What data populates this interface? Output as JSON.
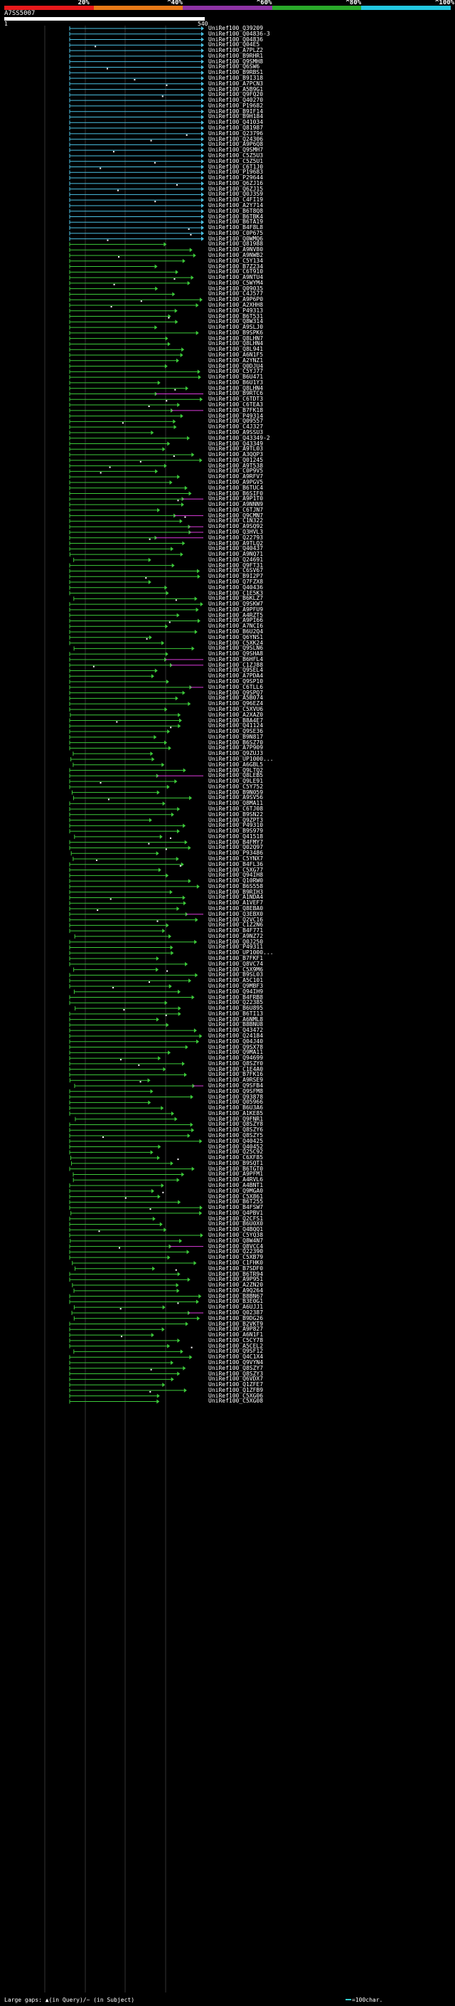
{
  "legend": {
    "segments": [
      {
        "name": "red",
        "color": "#e8191b"
      },
      {
        "name": "orange",
        "color": "#e87a17"
      },
      {
        "name": "purple",
        "color": "#8e33a4"
      },
      {
        "name": "green",
        "color": "#2aa92a"
      },
      {
        "name": "cyan",
        "color": "#22c7e0"
      }
    ],
    "labels": [
      "20%",
      "^40%",
      "^60%",
      "^80%",
      "^100%"
    ]
  },
  "query": {
    "title": "A7SS5007",
    "start": "1",
    "end": "540"
  },
  "colors": {
    "cyan": "#4cc3e6",
    "green": "#3cc93a",
    "magenta": "#d93bd9",
    "grid": "#333333"
  },
  "footer": {
    "large_gaps": "Large gaps: ▲(in Query)/~ (in Subject)",
    "scale_key": "=100char."
  },
  "hits": [
    "UniRef100_Q39209",
    "UniRef100_Q04836-3",
    "UniRef100_Q04836",
    "UniRef100_Q04E5",
    "UniRef100_A7PLZ2",
    "UniRef100_B9RHR1",
    "UniRef100_Q9SMH8",
    "UniRef100_Q6SW6",
    "UniRef100_B9RBS1",
    "UniRef100_B9I318",
    "UniRef100_A7PCN3",
    "UniRef100_A5B9G1",
    "UniRef100_Q9FQ20",
    "UniRef100_Q40270",
    "UniRef100_P19682",
    "UniRef100_B9IF14",
    "UniRef100_B9H184",
    "UniRef100_Q41034",
    "UniRef100_Q81987",
    "UniRef100_Q23796",
    "UniRef100_Q24306",
    "UniRef100_A9P6Q8",
    "UniRef100_Q9SMH7",
    "UniRef100_C5Z5U3",
    "UniRef100_C5Z5U1",
    "UniRef100_C6T1J0",
    "UniRef100_P19683",
    "UniRef100_P29644",
    "UniRef100_Q6ZJ16",
    "UniRef100_Q6ZJ15",
    "UniRef100_Q0J3S9",
    "UniRef100_C4FI19",
    "UniRef100_A2Y714",
    "UniRef100_B6T8Q8",
    "UniRef100_B6TBK4",
    "UniRef100_B6TA19",
    "UniRef100_B4F8L8",
    "UniRef100_C0P675",
    "UniRef100_Q0WMQ6",
    "UniRef100_Q81988",
    "UniRef100_A9NV80",
    "UniRef100_A9NWB2",
    "UniRef100_C5Y134",
    "UniRef100_B7Z234",
    "UniRef100_C6T910",
    "UniRef100_A9NTU4",
    "UniRef100_C5WYM4",
    "UniRef100_Q09035",
    "UniRef100_C4J577",
    "UniRef100_A9P6P0",
    "UniRef100_A2XHH8",
    "UniRef100_P49313",
    "UniRef100_B6T531",
    "UniRef100_Q8W314",
    "UniRef100_A9SLJ0",
    "UniRef100_B9SPK6",
    "UniRef100_Q8LHN7",
    "UniRef100_Q8LHN4",
    "UniRef100_Q8L941",
    "UniRef100_A6N1F5",
    "UniRef100_A2YNZ1",
    "UniRef100_Q0DJU4",
    "UniRef100_C5YJ77",
    "UniRef100_B6U471",
    "UniRef100_B6U1Y3",
    "UniRef100_Q8LHN4",
    "UniRef100_B9RTC6",
    "UniRef100_C6TDT3",
    "UniRef100_C6TEA3",
    "UniRef100_B7FK18",
    "UniRef100_P49314",
    "UniRef100_Q09557",
    "UniRef100_C4J327",
    "UniRef100_A9SSU3",
    "UniRef100_Q43349-2",
    "UniRef100_Q43349",
    "UniRef100_A9TL03",
    "UniRef100_A3QQP3",
    "UniRef100_Q01245",
    "UniRef100_A9T538",
    "UniRef100_C0P9V5",
    "UniRef100_A9RFV7",
    "UniRef100_A9PGV5",
    "UniRef100_B6TUC4",
    "UniRef100_B6SIF0",
    "UniRef100_A9P1T0",
    "UniRef100_A9NNN9",
    "UniRef100_C6TJN7",
    "UniRef100_Q9CMN7",
    "UniRef100_C1N322",
    "UniRef100_A9SQ92",
    "UniRef100_Q3HVL3",
    "UniRef100_Q22793",
    "UniRef100_A9TLQ2",
    "UniRef100_Q40437",
    "UniRef100_A9NQ71",
    "UniRef100_Q24691",
    "UniRef100_Q9FT31",
    "UniRef100_C6SV67",
    "UniRef100_B9I2P7",
    "UniRef100_Q7FZX8",
    "UniRef100_Q40436",
    "UniRef100_C1E5K3",
    "UniRef100_B6KLZ7",
    "UniRef100_Q9SKW7",
    "UniRef100_A9PFU9",
    "UniRef100_A4RZT5",
    "UniRef100_A9PI66",
    "UniRef100_A7NCI6",
    "UniRef100_B6U2Q4",
    "UniRef100_Q6YNS1",
    "UniRef100_C5XK24",
    "UniRef100_Q9SLN6",
    "UniRef100_Q9SHA8",
    "UniRef100_B6HFL4",
    "UniRef100_C1ZJ88",
    "UniRef100_Q9SEL4",
    "UniRef100_A7PDA4",
    "UniRef100_Q9SP10",
    "UniRef100_C6TLL6",
    "UniRef100_Q9SPQ7",
    "UniRef100_A5B074",
    "UniRef100_Q96EZ4",
    "UniRef100_C5XVU6",
    "UniRef100_A2XAZ0",
    "UniRef100_B8A4E7",
    "UniRef100_Q41124",
    "UniRef100_Q9SE36",
    "UniRef100_B9N817",
    "UniRef100_B6SZ70",
    "UniRef100_A7P909",
    "UniRef100_Q9ZUJ3",
    "UniRef100_UP1000...",
    "UniRef100_A6GBL5",
    "UniRef100_Q9LTQ2",
    "UniRef100_Q8LEB5",
    "UniRef100_Q9LE91",
    "UniRef100_C5Y752",
    "UniRef100_B9N059",
    "UniRef100_A9SV56",
    "UniRef100_Q8MA11",
    "UniRef100_C6TJ08",
    "UniRef100_B9SN22",
    "UniRef100_Q9ZPT3",
    "UniRef100_P49310",
    "UniRef100_B9S979",
    "UniRef100_Q41518",
    "UniRef100_B4FMY7",
    "UniRef100_Q02Q97",
    "UniRef100_P93486",
    "UniRef100_C5YNX7",
    "UniRef100_B4FL36",
    "UniRef100_C5XG77",
    "UniRef100_Q94IH8",
    "UniRef100_Q10RW0",
    "UniRef100_B6S558",
    "UniRef100_B9RIH3",
    "UniRef100_A1NDA4",
    "UniRef100_A1VEF7",
    "UniRef100_Q8EBA0",
    "UniRef100_Q3EBX0",
    "UniRef100_Q2VC16",
    "UniRef100_C1Z2N6",
    "UniRef100_B4F771",
    "UniRef100_A9NZ72",
    "UniRef100_Q0J250",
    "UniRef100_P49311",
    "UniRef100_UP1000...",
    "UniRef100_B7FKF1",
    "UniRef100_Q8VC74",
    "UniRef100_C5X9M6",
    "UniRef100_B9SL03",
    "UniRef100_A5C101",
    "UniRef100_Q9MBF3",
    "UniRef100_Q94IH9",
    "UniRef100_B4FRB8",
    "UniRef100_Q22385",
    "UniRef100_B6U895",
    "UniRef100_B6TI13",
    "UniRef100_A6NML8",
    "UniRef100_B8BNU8",
    "UniRef100_Q43472",
    "UniRef100_Q24184",
    "UniRef100_Q04J40",
    "UniRef100_Q9SX78",
    "UniRef100_Q9MA11",
    "UniRef100_Q94699",
    "UniRef100_Q8SZY0",
    "UniRef100_C1E4A0",
    "UniRef100_B7FK16",
    "UniRef100_A9RSE9",
    "UniRef100_Q9SFB4",
    "UniRef100_Q9SFM8",
    "UniRef100_Q93878",
    "UniRef100_Q05966",
    "UniRef100_B6U3A6",
    "UniRef100_A1KE85",
    "UniRef100_Q9FNR1",
    "UniRef100_Q8SZY8",
    "UniRef100_Q8SZY6",
    "UniRef100_Q8SZY5",
    "UniRef100_Q40425",
    "UniRef100_Q40452",
    "UniRef100_Q25C92",
    "UniRef100_C6XF85",
    "UniRef100_B9SQT1",
    "UniRef100_B6TGT0",
    "UniRef100_A9PFM1",
    "UniRef100_A4RVL6",
    "UniRef100_A4BNT1",
    "UniRef100_Q9MGA0",
    "UniRef100_C5X861",
    "UniRef100_B6T255",
    "UniRef100_B4FSW7",
    "UniRef100_Q4PBV1",
    "UniRef100_Q2CFS1",
    "UniRef100_B6U0X0",
    "UniRef100_Q4BQQ1",
    "UniRef100_C5YQ38",
    "UniRef100_Q8W4N7",
    "UniRef100_Q8VCC4",
    "UniRef100_Q22390",
    "UniRef100_C5XB79",
    "UniRef100_C1FHK0",
    "UniRef100_B7SDF0",
    "UniRef100_B6TR94",
    "UniRef100_A9P951",
    "UniRef100_A2ZN20",
    "UniRef100_A9Q264",
    "UniRef100_B8BN67",
    "UniRef100_B3E0G1",
    "UniRef100_A6UJJ1",
    "UniRef100_Q02387",
    "UniRef100_B9DG26",
    "UniRef100_B2VKT9",
    "UniRef100_A9P827",
    "UniRef100_A6N1F1",
    "UniRef100_C5CY78",
    "UniRef100_A5CEL2",
    "UniRef100_Q9SF12",
    "UniRef100_Q4C1X4",
    "UniRef100_Q9VYN4",
    "UniRef100_Q8SZY7",
    "UniRef100_Q8SZY3",
    "UniRef100_Q6VDX7",
    "UniRef100_Q1ZFE7",
    "UniRef100_Q1ZFB9",
    "UniRef100_C5XG06",
    "UniRef100_C5XG08"
  ]
}
